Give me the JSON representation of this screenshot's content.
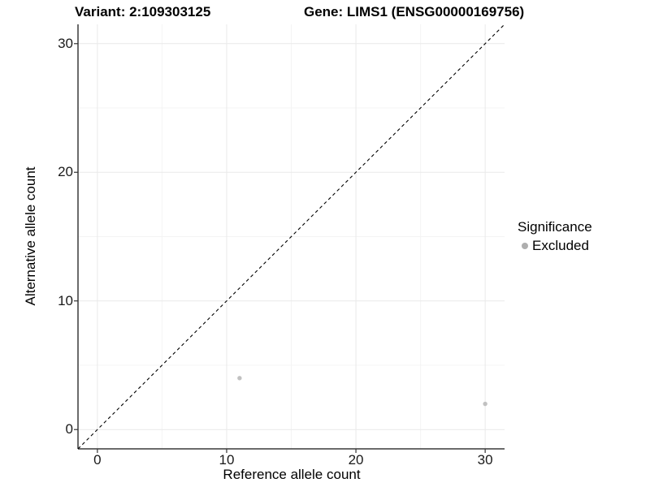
{
  "chart_data": {
    "type": "scatter",
    "title_left": "Variant: 2:109303125",
    "title_right": "Gene: LIMS1 (ENSG00000169756)",
    "xlabel": "Reference allele count",
    "ylabel": "Alternative allele count",
    "xlim": [
      -1.5,
      31.5
    ],
    "ylim": [
      -1.5,
      31.5
    ],
    "xticks": [
      0,
      10,
      20,
      30
    ],
    "yticks": [
      0,
      10,
      20,
      30
    ],
    "xticks_minor": [
      5,
      15,
      25
    ],
    "yticks_minor": [
      5,
      15,
      25
    ],
    "grid": true,
    "points": [
      {
        "x": 11,
        "y": 4,
        "series": "Excluded"
      },
      {
        "x": 30,
        "y": 2,
        "series": "Excluded"
      }
    ],
    "identity_line": {
      "from": [
        -1.5,
        -1.5
      ],
      "to": [
        31.5,
        31.5
      ],
      "style": "dashed",
      "color": "#000000"
    },
    "legend": {
      "title": "Significance",
      "position": "right",
      "items": [
        {
          "label": "Excluded",
          "color": "#bebebe"
        }
      ]
    },
    "colors": {
      "point": "#c1c1c1",
      "legend_marker": "#aeaeae",
      "grid_major": "#e9e9e9",
      "grid_minor": "#f4f4f4",
      "axis_line": "#3a3a3a",
      "tick_mark": "#333333"
    }
  }
}
